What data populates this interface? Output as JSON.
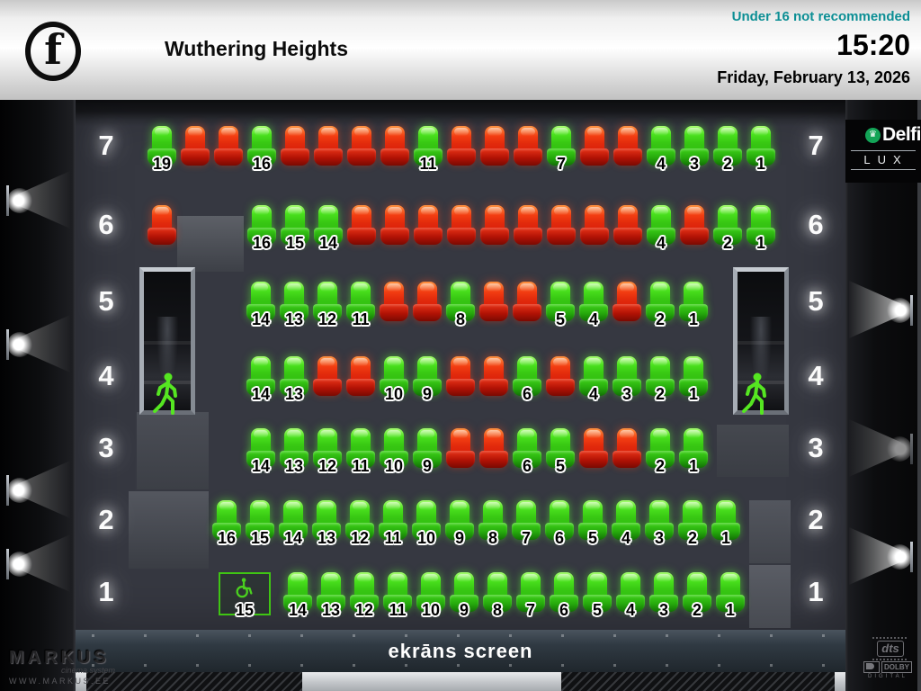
{
  "header": {
    "rating_symbol": "f",
    "title": "Wuthering Heights",
    "advisory": "Under 16 not recommended",
    "time": "15:20",
    "date": "Friday, February 13, 2026"
  },
  "signage": {
    "delfi": "Delfi",
    "crown_glyph": "♛",
    "lux": "LUX"
  },
  "screen": {
    "label": "ekrāns screen"
  },
  "footer": {
    "markus": "MARKUS",
    "markus_tagline": "cinema system",
    "markus_url": "WWW.MARKUS.EE",
    "dts": "dts",
    "dolby": "DOLBY",
    "dolby_sub": "DIGITAL"
  },
  "colors": {
    "seat_free": "#3ed319",
    "seat_taken": "#e83014",
    "advisory_text": "#0b8e94"
  },
  "seatmap": {
    "rows": [
      {
        "label": "7",
        "cells": [
          {
            "st": "free",
            "n": "19"
          },
          {
            "st": "taken"
          },
          {
            "st": "taken"
          },
          {
            "st": "free",
            "n": "16"
          },
          {
            "st": "taken"
          },
          {
            "st": "taken"
          },
          {
            "st": "taken"
          },
          {
            "st": "taken"
          },
          {
            "st": "free",
            "n": "11"
          },
          {
            "st": "taken"
          },
          {
            "st": "taken"
          },
          {
            "st": "taken"
          },
          {
            "st": "free",
            "n": "7"
          },
          {
            "st": "taken"
          },
          {
            "st": "taken"
          },
          {
            "st": "free",
            "n": "4"
          },
          {
            "st": "free",
            "n": "3"
          },
          {
            "st": "free",
            "n": "2"
          },
          {
            "st": "free",
            "n": "1"
          }
        ]
      },
      {
        "label": "6",
        "cells": [
          {
            "st": "taken"
          },
          {
            "st": "gap"
          },
          {
            "st": "gap"
          },
          {
            "st": "free",
            "n": "16"
          },
          {
            "st": "free",
            "n": "15"
          },
          {
            "st": "free",
            "n": "14"
          },
          {
            "st": "taken"
          },
          {
            "st": "taken"
          },
          {
            "st": "taken"
          },
          {
            "st": "taken"
          },
          {
            "st": "taken"
          },
          {
            "st": "taken"
          },
          {
            "st": "taken"
          },
          {
            "st": "taken"
          },
          {
            "st": "taken"
          },
          {
            "st": "free",
            "n": "4"
          },
          {
            "st": "taken"
          },
          {
            "st": "free",
            "n": "2"
          },
          {
            "st": "free",
            "n": "1"
          }
        ]
      },
      {
        "label": "5",
        "cells": [
          {
            "st": "free",
            "n": "14"
          },
          {
            "st": "free",
            "n": "13"
          },
          {
            "st": "free",
            "n": "12"
          },
          {
            "st": "free",
            "n": "11"
          },
          {
            "st": "taken"
          },
          {
            "st": "taken"
          },
          {
            "st": "free",
            "n": "8"
          },
          {
            "st": "taken"
          },
          {
            "st": "taken"
          },
          {
            "st": "free",
            "n": "5"
          },
          {
            "st": "free",
            "n": "4"
          },
          {
            "st": "taken"
          },
          {
            "st": "free",
            "n": "2"
          },
          {
            "st": "free",
            "n": "1"
          }
        ]
      },
      {
        "label": "4",
        "cells": [
          {
            "st": "free",
            "n": "14"
          },
          {
            "st": "free",
            "n": "13"
          },
          {
            "st": "taken"
          },
          {
            "st": "taken"
          },
          {
            "st": "free",
            "n": "10"
          },
          {
            "st": "free",
            "n": "9"
          },
          {
            "st": "taken"
          },
          {
            "st": "taken"
          },
          {
            "st": "free",
            "n": "6"
          },
          {
            "st": "taken"
          },
          {
            "st": "free",
            "n": "4"
          },
          {
            "st": "free",
            "n": "3"
          },
          {
            "st": "free",
            "n": "2"
          },
          {
            "st": "free",
            "n": "1"
          }
        ]
      },
      {
        "label": "3",
        "cells": [
          {
            "st": "free",
            "n": "14"
          },
          {
            "st": "free",
            "n": "13"
          },
          {
            "st": "free",
            "n": "12"
          },
          {
            "st": "free",
            "n": "11"
          },
          {
            "st": "free",
            "n": "10"
          },
          {
            "st": "free",
            "n": "9"
          },
          {
            "st": "taken"
          },
          {
            "st": "taken"
          },
          {
            "st": "free",
            "n": "6"
          },
          {
            "st": "free",
            "n": "5"
          },
          {
            "st": "taken"
          },
          {
            "st": "taken"
          },
          {
            "st": "free",
            "n": "2"
          },
          {
            "st": "free",
            "n": "1"
          }
        ]
      },
      {
        "label": "2",
        "cells": [
          {
            "st": "free",
            "n": "16"
          },
          {
            "st": "free",
            "n": "15"
          },
          {
            "st": "free",
            "n": "14"
          },
          {
            "st": "free",
            "n": "13"
          },
          {
            "st": "free",
            "n": "12"
          },
          {
            "st": "free",
            "n": "11"
          },
          {
            "st": "free",
            "n": "10"
          },
          {
            "st": "free",
            "n": "9"
          },
          {
            "st": "free",
            "n": "8"
          },
          {
            "st": "free",
            "n": "7"
          },
          {
            "st": "free",
            "n": "6"
          },
          {
            "st": "free",
            "n": "5"
          },
          {
            "st": "free",
            "n": "4"
          },
          {
            "st": "free",
            "n": "3"
          },
          {
            "st": "free",
            "n": "2"
          },
          {
            "st": "free",
            "n": "1"
          }
        ]
      },
      {
        "label": "1",
        "cells": [
          {
            "st": "wc",
            "n": "15"
          },
          {
            "st": "free",
            "n": "14"
          },
          {
            "st": "free",
            "n": "13"
          },
          {
            "st": "free",
            "n": "12"
          },
          {
            "st": "free",
            "n": "11"
          },
          {
            "st": "free",
            "n": "10"
          },
          {
            "st": "free",
            "n": "9"
          },
          {
            "st": "free",
            "n": "8"
          },
          {
            "st": "free",
            "n": "7"
          },
          {
            "st": "free",
            "n": "6"
          },
          {
            "st": "free",
            "n": "5"
          },
          {
            "st": "free",
            "n": "4"
          },
          {
            "st": "free",
            "n": "3"
          },
          {
            "st": "free",
            "n": "2"
          },
          {
            "st": "free",
            "n": "1"
          }
        ]
      }
    ]
  }
}
